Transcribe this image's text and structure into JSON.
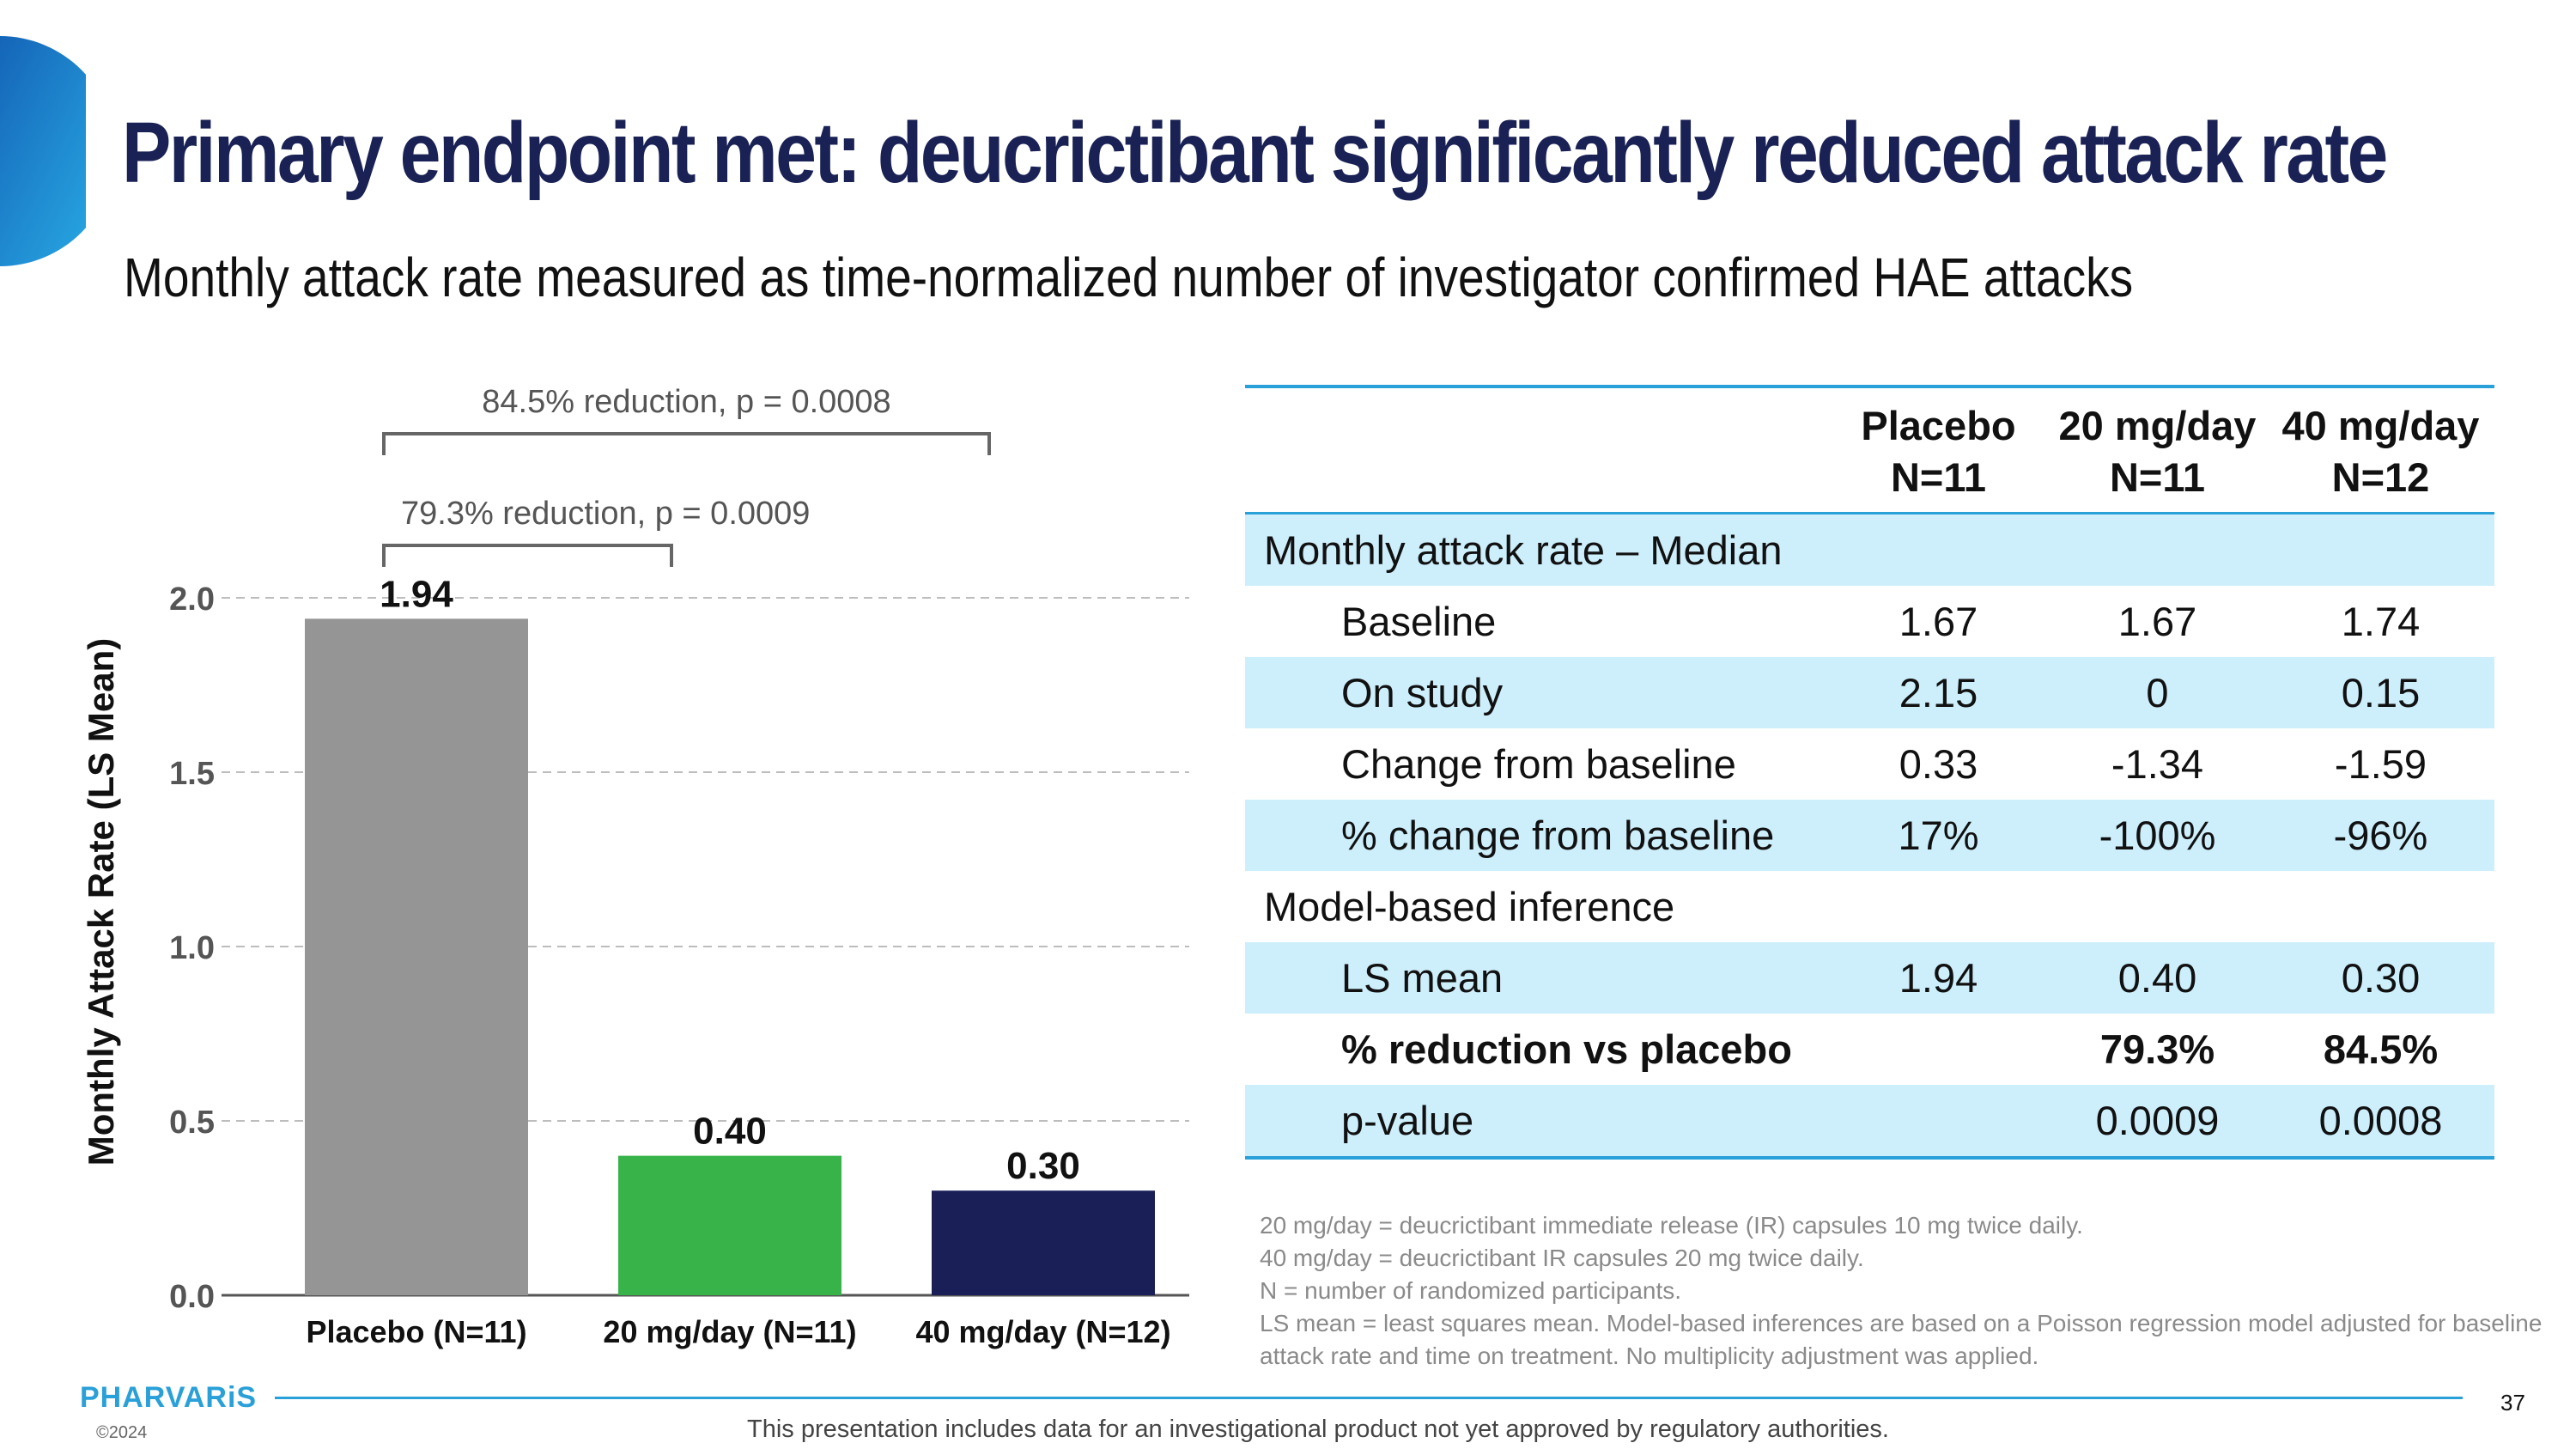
{
  "slide": {
    "title": "Primary endpoint met: deucrictibant significantly reduced attack rate",
    "subtitle": "Monthly attack rate measured as time-normalized number of investigator confirmed HAE attacks",
    "accent_color": "#1a2255",
    "brand_color": "#2aa0d8"
  },
  "chart_data": {
    "type": "bar",
    "categories": [
      "Placebo (N=11)",
      "20 mg/day (N=11)",
      "40 mg/day (N=12)"
    ],
    "values": [
      1.94,
      0.4,
      0.3
    ],
    "data_labels": [
      "1.94",
      "0.40",
      "0.30"
    ],
    "colors": [
      "#959595",
      "#37b34a",
      "#1a2057"
    ],
    "ylabel": "Monthly Attack Rate (LS Mean)",
    "ylim": [
      0,
      2.0
    ],
    "yticks": [
      "0.0",
      "0.5",
      "1.0",
      "1.5",
      "2.0"
    ],
    "grid": true,
    "annotations": [
      {
        "text": "84.5% reduction, p = 0.0008",
        "from": "Placebo (N=11)",
        "to": "40 mg/day (N=12)"
      },
      {
        "text": "79.3% reduction, p = 0.0009",
        "from": "Placebo (N=11)",
        "to": "20 mg/day (N=11)"
      }
    ]
  },
  "table": {
    "headers": [
      [
        "",
        ""
      ],
      [
        "Placebo",
        "N=11"
      ],
      [
        "20 mg/day",
        "N=11"
      ],
      [
        "40 mg/day",
        "N=12"
      ]
    ],
    "rows": [
      {
        "label": "Monthly attack rate – Median",
        "values": [
          "",
          "",
          ""
        ]
      },
      {
        "label": "Baseline",
        "values": [
          "1.67",
          "1.67",
          "1.74"
        ]
      },
      {
        "label": "On study",
        "values": [
          "2.15",
          "0",
          "0.15"
        ]
      },
      {
        "label": "Change from baseline",
        "values": [
          "0.33",
          "-1.34",
          "-1.59"
        ]
      },
      {
        "label": "% change from baseline",
        "values": [
          "17%",
          "-100%",
          "-96%"
        ]
      },
      {
        "label": "Model-based inference",
        "values": [
          "",
          "",
          ""
        ]
      },
      {
        "label": "LS mean",
        "values": [
          "1.94",
          "0.40",
          "0.30"
        ]
      },
      {
        "label": "% reduction vs placebo",
        "values": [
          "",
          "79.3%",
          "84.5%"
        ]
      },
      {
        "label": "p-value",
        "values": [
          "",
          "0.0009",
          "0.0008"
        ]
      }
    ],
    "shade_color": "#cdeefb"
  },
  "footnotes": [
    "20 mg/day = deucrictibant immediate release (IR) capsules 10 mg twice daily.",
    "40 mg/day = deucrictibant IR capsules 20 mg twice daily.",
    "N = number of randomized participants.",
    "LS mean = least squares mean. Model-based inferences are based on a Poisson regression model adjusted for baseline",
    "attack rate and  time on treatment. No multiplicity adjustment was applied."
  ],
  "footer": {
    "logo": "PHARVARiS",
    "copyright": "©2024",
    "disclaimer": "This presentation includes data for an investigational product not yet approved by regulatory authorities.",
    "page_number": "37"
  }
}
